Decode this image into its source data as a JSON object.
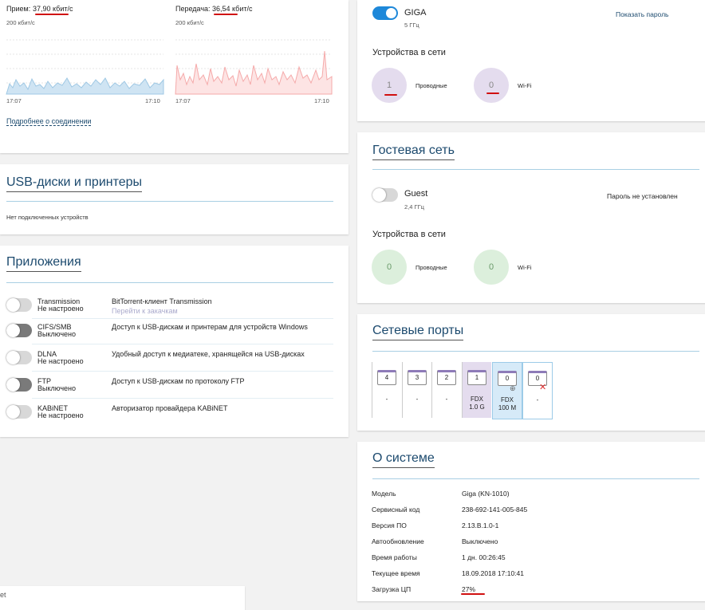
{
  "traffic": {
    "rx": {
      "label": "Прием:",
      "value": "37,90 кбит/с",
      "scale": "200 кбит/с",
      "start": "17:07",
      "end": "17:10"
    },
    "tx": {
      "label": "Передача:",
      "value": "36,54 кбит/с",
      "scale": "200 кбит/с",
      "start": "17:07",
      "end": "17:10"
    },
    "details_link": "Подробнее о соединении"
  },
  "usb": {
    "title": "USB-диски и принтеры",
    "empty": "Нет подключенных устройств"
  },
  "apps": {
    "title": "Приложения",
    "rows": [
      {
        "name": "Transmission",
        "status": "Не настроено",
        "description": "BitTorrent-клиент Transmission",
        "link": "Перейти к закачкам"
      },
      {
        "name": "CIFS/SMB",
        "status": "Выключено",
        "description": "Доступ к USB-дискам и принтерам для устройств Windows"
      },
      {
        "name": "DLNA",
        "status": "Не настроено",
        "description": "Удобный доступ к медиатеке, хранящейся на USB-дисках"
      },
      {
        "name": "FTP",
        "status": "Выключено",
        "description": "Доступ к USB-дискам по протоколу FTP"
      },
      {
        "name": "KABiNET",
        "status": "Не настроено",
        "description": "Авторизатор провайдера KABiNET"
      }
    ]
  },
  "search_fragment": "et",
  "wifi": {
    "ssid": "GIGA",
    "band": "5 ГГц",
    "show_password": "Показать пароль",
    "devices_title": "Устройства в сети",
    "wired_count": "1",
    "wired_label": "Проводные",
    "wifi_count": "0",
    "wifi_label": "Wi-Fi"
  },
  "guest": {
    "title": "Гостевая сеть",
    "ssid": "Guest",
    "band": "2,4 ГГц",
    "password": "Пароль не установлен",
    "devices_title": "Устройства в сети",
    "wired_count": "0",
    "wired_label": "Проводные",
    "wifi_count": "0",
    "wifi_label": "Wi-Fi"
  },
  "ports": {
    "title": "Сетевые порты",
    "items": [
      {
        "number": "4",
        "status": "-"
      },
      {
        "number": "3",
        "status": "-"
      },
      {
        "number": "2",
        "status": "-"
      },
      {
        "number": "1",
        "status": "FDX",
        "speed": "1.0 G"
      },
      {
        "number": "0",
        "status": "FDX",
        "speed": "100 M"
      },
      {
        "number": "0",
        "status": "-"
      }
    ]
  },
  "system": {
    "title": "О системе",
    "rows": [
      [
        "Модель",
        "Giga (KN-1010)"
      ],
      [
        "Сервисный код",
        "238-692-141-005-845"
      ],
      [
        "Версия ПО",
        "2.13.B.1.0-1"
      ],
      [
        "Автообновление",
        "Выключено"
      ],
      [
        "Время работы",
        "1 дн. 00:26:45"
      ],
      [
        "Текущее время",
        "18.09.2018 17:10:41"
      ],
      [
        "Загрузка ЦП",
        "27%"
      ]
    ]
  }
}
